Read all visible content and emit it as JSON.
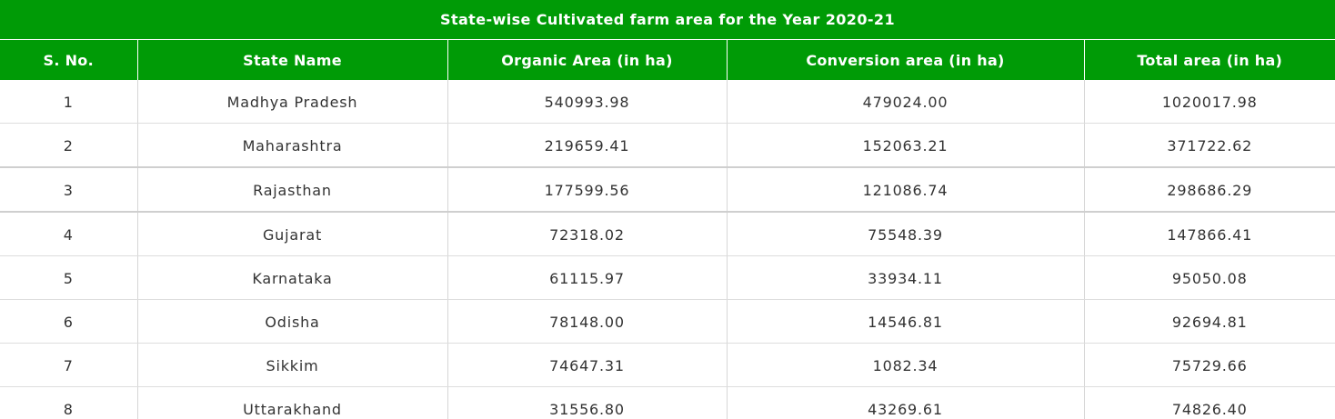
{
  "table": {
    "title": "State-wise Cultivated farm area for the Year 2020-21",
    "headers": [
      "S. No.",
      "State Name",
      "Organic Area (in ha)",
      "Conversion area (in ha)",
      "Total area (in ha)"
    ],
    "rows": [
      [
        "1",
        "Madhya Pradesh",
        "540993.98",
        "479024.00",
        "1020017.98"
      ],
      [
        "2",
        "Maharashtra",
        "219659.41",
        "152063.21",
        "371722.62"
      ],
      [
        "3",
        "Rajasthan",
        "177599.56",
        "121086.74",
        "298686.29"
      ],
      [
        "4",
        "Gujarat",
        "72318.02",
        "75548.39",
        "147866.41"
      ],
      [
        "5",
        "Karnataka",
        "61115.97",
        "33934.11",
        "95050.08"
      ],
      [
        "6",
        "Odisha",
        "78148.00",
        "14546.81",
        "92694.81"
      ],
      [
        "7",
        "Sikkim",
        "74647.31",
        "1082.34",
        "75729.66"
      ],
      [
        "8",
        "Uttarakhand",
        "31556.80",
        "43269.61",
        "74826.40"
      ]
    ]
  },
  "colors": {
    "header_bg": "#009b06",
    "header_text": "#ffffff",
    "cell_text": "#333333",
    "grid": "#dddddd"
  }
}
